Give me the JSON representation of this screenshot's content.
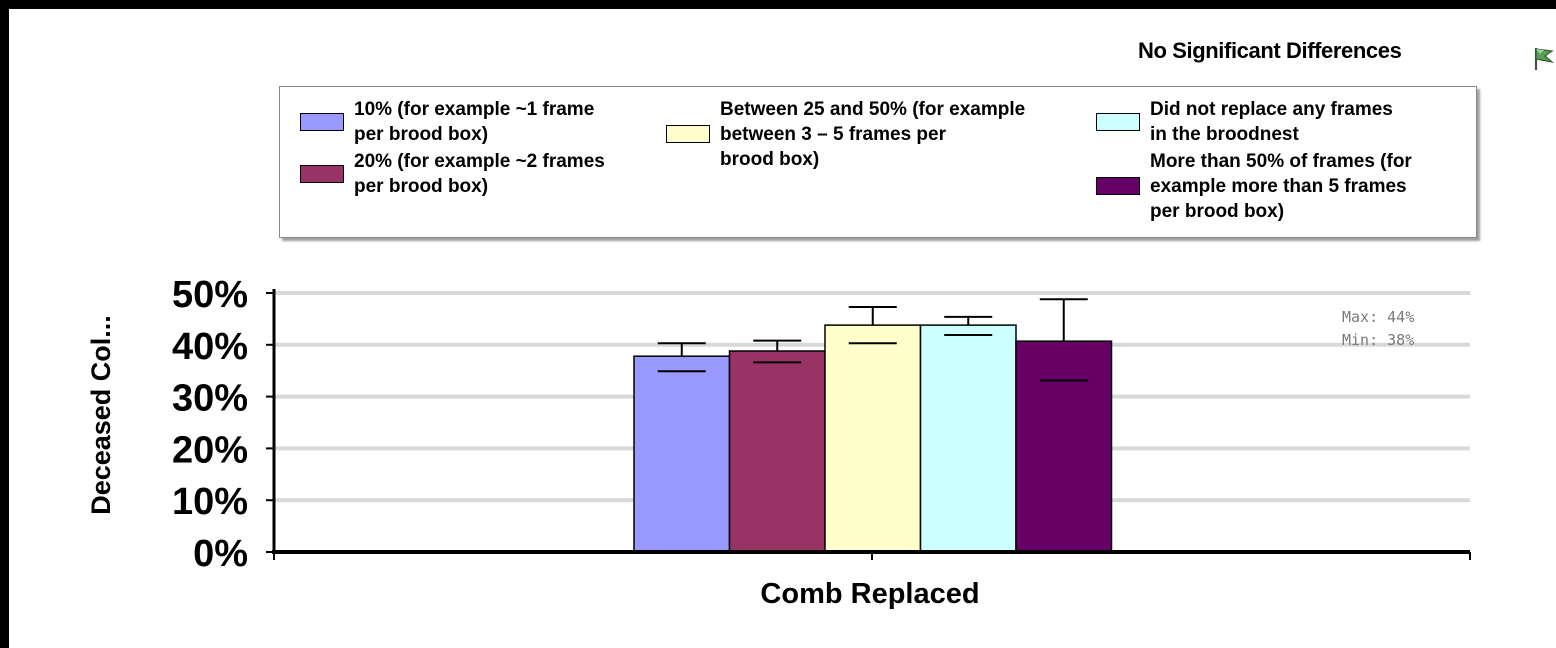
{
  "header": {
    "status_text": "No Significant Differences",
    "status_icon": "flag-icon"
  },
  "annotation": {
    "max_text": "Max: 44%",
    "min_text": "Min: 38%"
  },
  "chart_data": {
    "type": "bar",
    "title": "",
    "xlabel": "Comb Replaced",
    "ylabel": "Deceased Col...",
    "ylim": [
      0,
      50
    ],
    "y_ticks": [
      "0%",
      "10%",
      "20%",
      "30%",
      "40%",
      "50%"
    ],
    "grid": true,
    "legend_position": "top",
    "categories": [
      ""
    ],
    "series": [
      {
        "name": "10% (for example ~1 frame per brood box)",
        "color": "#9999ff",
        "values": [
          37.8
        ],
        "error_low": [
          34.9
        ],
        "error_high": [
          40.3
        ]
      },
      {
        "name": "20% (for example ~2 frames per brood box)",
        "color": "#993366",
        "values": [
          38.8
        ],
        "error_low": [
          36.6
        ],
        "error_high": [
          40.8
        ]
      },
      {
        "name": "Between 25 and 50% (for example between 3 – 5 frames per brood box)",
        "color": "#ffffcc",
        "values": [
          43.8
        ],
        "error_low": [
          40.3
        ],
        "error_high": [
          47.3
        ]
      },
      {
        "name": "Did not replace any frames in the broodnest",
        "color": "#ccffff",
        "values": [
          43.8
        ],
        "error_low": [
          41.9
        ],
        "error_high": [
          45.4
        ]
      },
      {
        "name": "More than 50% of frames (for example more than 5 frames per brood box)",
        "color": "#660066",
        "values": [
          40.7
        ],
        "error_low": [
          33.1
        ],
        "error_high": [
          48.8
        ]
      }
    ]
  },
  "legend": {
    "items": [
      {
        "lines": "10% (for example ~1 frame\nper brood box)",
        "color": "#9999ff"
      },
      {
        "lines": "20% (for example ~2 frames\nper brood box)",
        "color": "#993366"
      },
      {
        "lines": "Between 25 and 50% (for example\nbetween 3 – 5 frames per\nbrood box)",
        "color": "#ffffcc"
      },
      {
        "lines": "Did not replace any frames\nin the broodnest",
        "color": "#ccffff"
      },
      {
        "lines": "More than 50% of frames (for\nexample more than 5 frames\nper brood box)",
        "color": "#660066"
      }
    ]
  }
}
